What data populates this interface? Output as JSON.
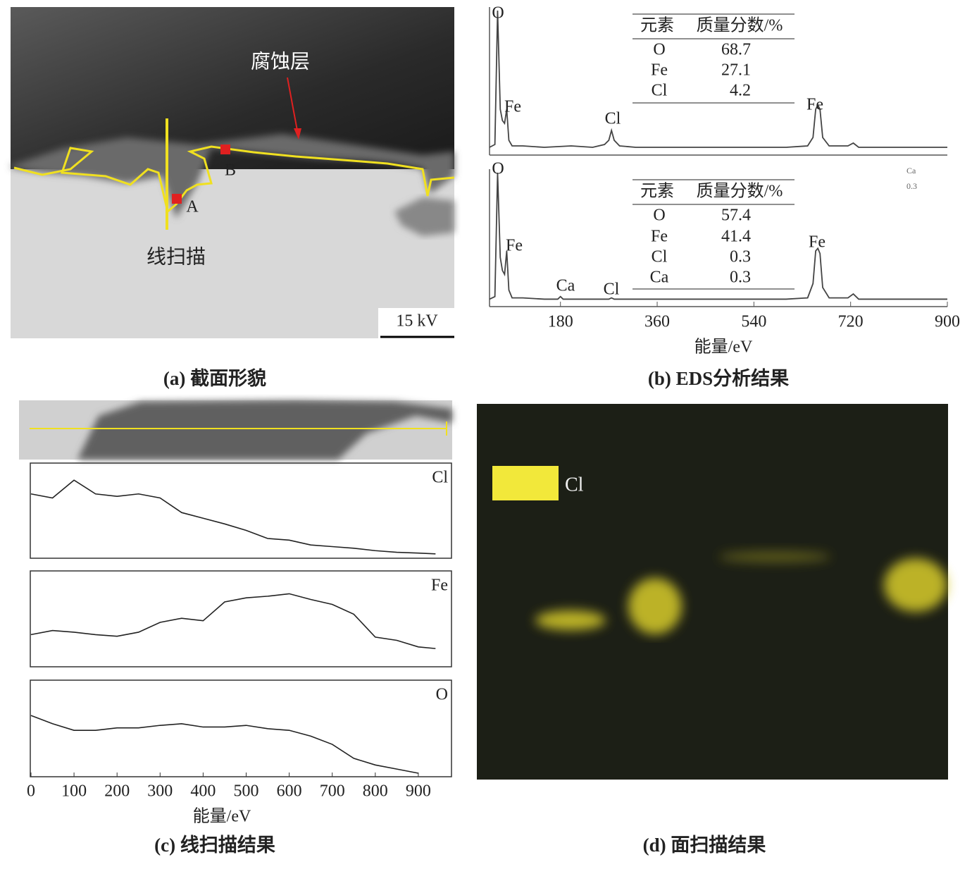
{
  "panel_a": {
    "caption": "(a) 截面形貌",
    "labels": {
      "layer": "腐蚀层",
      "scan": "线扫描",
      "point_a": "A",
      "point_b": "B"
    },
    "scale_bar": "15 kV"
  },
  "panel_b": {
    "caption": "(b) EDS分析结果",
    "type": "line",
    "xlabel": "能量/eV",
    "xlim": [
      48,
      900
    ],
    "xticks": [
      180,
      360,
      540,
      720,
      900
    ],
    "ylim": [
      0,
      100
    ],
    "spectra": [
      {
        "peak_labels": [
          "O",
          "Fe",
          "Cl",
          "Fe"
        ],
        "table": {
          "header": [
            "元素",
            "质量分数/%"
          ],
          "rows": [
            [
              "O",
              68.7
            ],
            [
              "Fe",
              27.1
            ],
            [
              "Cl",
              4.2
            ]
          ]
        },
        "x": [
          48,
          58,
          63,
          68,
          72,
          76,
          80,
          84,
          90,
          110,
          150,
          200,
          240,
          262,
          270,
          275,
          280,
          290,
          320,
          400,
          500,
          600,
          640,
          650,
          655,
          659,
          663,
          668,
          680,
          715,
          725,
          735,
          760,
          900
        ],
        "values": [
          3,
          5,
          100,
          30,
          22,
          20,
          30,
          8,
          4,
          4,
          3,
          4,
          3,
          5,
          8,
          15,
          8,
          4,
          3,
          3,
          3,
          3,
          4,
          10,
          30,
          33,
          30,
          10,
          4,
          4,
          6,
          3,
          3,
          3
        ]
      },
      {
        "peak_labels": [
          "O",
          "Fe",
          "Ca",
          "Cl",
          "Fe"
        ],
        "table": {
          "header": [
            "元素",
            "质量分数/%"
          ],
          "rows": [
            [
              "O",
              57.4
            ],
            [
              "Fe",
              41.4
            ],
            [
              "Cl",
              0.3
            ],
            [
              "Ca",
              0.3
            ]
          ]
        },
        "note": [
          "Ca",
          0.3
        ],
        "x": [
          48,
          58,
          63,
          68,
          72,
          76,
          80,
          84,
          90,
          110,
          150,
          175,
          180,
          185,
          220,
          270,
          275,
          280,
          320,
          400,
          500,
          600,
          640,
          650,
          655,
          659,
          663,
          668,
          680,
          715,
          725,
          735,
          760,
          900
        ],
        "values": [
          3,
          5,
          100,
          35,
          25,
          22,
          40,
          10,
          4,
          4,
          3,
          3,
          5,
          3,
          3,
          3,
          4,
          3,
          3,
          3,
          3,
          3,
          4,
          15,
          40,
          42,
          38,
          12,
          4,
          4,
          7,
          3,
          3,
          3
        ]
      }
    ]
  },
  "panel_c": {
    "caption": "(c) 线扫描结果",
    "type": "line",
    "xlabel": "能量/eV",
    "xlim": [
      0,
      980
    ],
    "xticks": [
      0,
      100,
      200,
      300,
      400,
      500,
      600,
      700,
      800,
      900
    ],
    "ylim": [
      0,
      100
    ],
    "profiles": [
      {
        "name": "Cl",
        "x": [
          0,
          50,
          100,
          150,
          200,
          250,
          300,
          350,
          400,
          450,
          500,
          550,
          600,
          650,
          700,
          750,
          800,
          850,
          900,
          940
        ],
        "values": [
          75,
          70,
          92,
          75,
          72,
          75,
          70,
          52,
          45,
          38,
          30,
          20,
          18,
          12,
          10,
          8,
          5,
          3,
          2,
          1
        ]
      },
      {
        "name": "Fe",
        "x": [
          0,
          50,
          100,
          150,
          200,
          250,
          300,
          350,
          400,
          450,
          500,
          550,
          600,
          650,
          700,
          750,
          800,
          850,
          900,
          940
        ],
        "values": [
          35,
          40,
          38,
          35,
          33,
          38,
          50,
          55,
          52,
          75,
          80,
          82,
          85,
          78,
          72,
          60,
          32,
          28,
          20,
          18
        ]
      },
      {
        "name": "O",
        "x": [
          0,
          50,
          100,
          150,
          200,
          250,
          300,
          350,
          400,
          450,
          500,
          550,
          600,
          650,
          700,
          750,
          800,
          850,
          900
        ],
        "values": [
          70,
          60,
          52,
          52,
          55,
          55,
          58,
          60,
          56,
          56,
          58,
          54,
          52,
          45,
          35,
          18,
          10,
          5,
          0
        ]
      }
    ]
  },
  "panel_d": {
    "caption": "(d) 面扫描结果",
    "legend": "Cl"
  }
}
